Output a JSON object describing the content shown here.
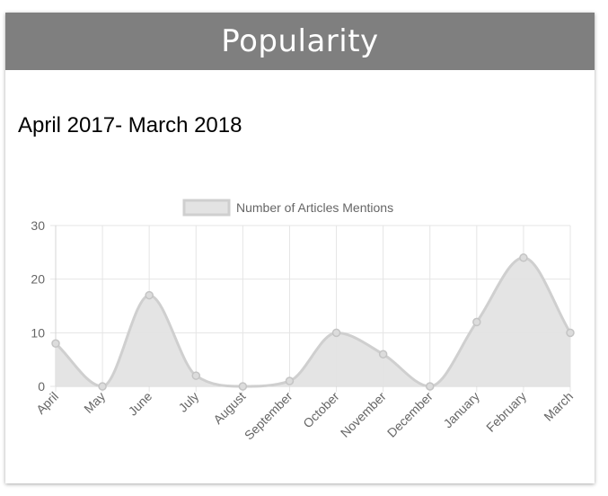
{
  "header": {
    "title": "Popularity"
  },
  "period_label": "April 2017- March 2018",
  "colors": {
    "header_bg": "#7f7f7f",
    "series_fill": "#e3e3e3",
    "series_line": "#cfcfcf",
    "grid": "#e5e5e5",
    "axis_text": "#666666"
  },
  "chart_data": {
    "type": "area",
    "categories": [
      "April",
      "May",
      "June",
      "July",
      "August",
      "September",
      "October",
      "November",
      "December",
      "January",
      "February",
      "March"
    ],
    "series": [
      {
        "name": "Number of Articles Mentions",
        "values": [
          8,
          0,
          17,
          2,
          0,
          1,
          10,
          6,
          0,
          12,
          24,
          10
        ]
      }
    ],
    "ylim": [
      0,
      30
    ],
    "yticks": [
      0,
      10,
      20,
      30
    ],
    "grid": true,
    "legend_position": "top",
    "smooth": true
  }
}
